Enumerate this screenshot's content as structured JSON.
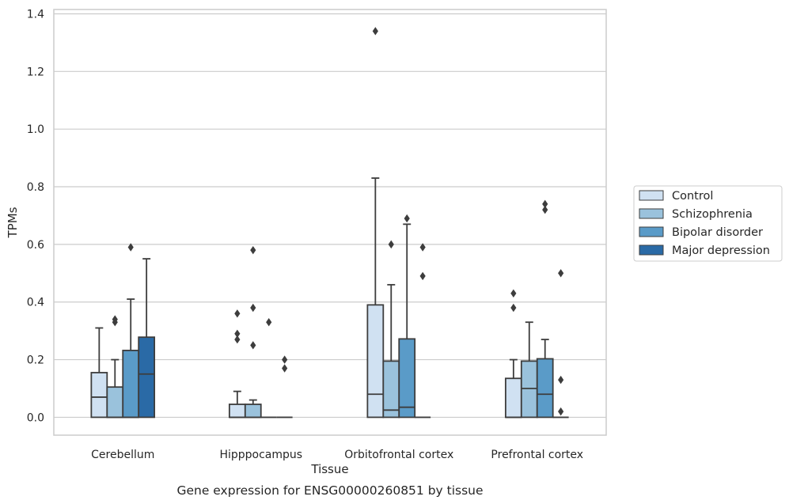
{
  "chart_data": {
    "type": "box",
    "title": "",
    "caption": "Gene expression for ENSG00000260851 by tissue",
    "xlabel": "Tissue",
    "ylabel": "TPMs",
    "ylim": [
      -0.062,
      1.415
    ],
    "yticks": [
      0.0,
      0.2,
      0.4,
      0.6,
      0.8,
      1.0,
      1.2,
      1.4
    ],
    "ytick_labels": [
      "0.0",
      "0.2",
      "0.4",
      "0.6",
      "0.8",
      "1.0",
      "1.2",
      "1.4"
    ],
    "grid": "horizontal",
    "legend_position": "right",
    "categories": [
      "Cerebellum",
      "Hipppocampus",
      "Orbitofrontal cortex",
      "Prefrontal cortex"
    ],
    "series": [
      {
        "name": "Control",
        "color": "#d0e1f2",
        "boxes": [
          {
            "q1": 0.0,
            "median": 0.07,
            "q3": 0.155,
            "whisker_low": 0.0,
            "whisker_high": 0.31,
            "outliers": []
          },
          {
            "q1": 0.0,
            "median": 0.0,
            "q3": 0.045,
            "whisker_low": 0.0,
            "whisker_high": 0.09,
            "outliers": [
              0.27,
              0.29,
              0.36
            ]
          },
          {
            "q1": 0.0,
            "median": 0.08,
            "q3": 0.39,
            "whisker_low": 0.0,
            "whisker_high": 0.83,
            "outliers": [
              1.34
            ]
          },
          {
            "q1": 0.0,
            "median": 0.0,
            "q3": 0.135,
            "whisker_low": 0.0,
            "whisker_high": 0.2,
            "outliers": [
              0.38,
              0.43
            ]
          }
        ]
      },
      {
        "name": "Schizophrenia",
        "color": "#9ac2dc",
        "boxes": [
          {
            "q1": 0.0,
            "median": 0.0,
            "q3": 0.105,
            "whisker_low": 0.0,
            "whisker_high": 0.2,
            "outliers": [
              0.33,
              0.34
            ]
          },
          {
            "q1": 0.0,
            "median": 0.0,
            "q3": 0.045,
            "whisker_low": 0.0,
            "whisker_high": 0.06,
            "outliers": [
              0.25,
              0.38,
              0.58
            ]
          },
          {
            "q1": 0.0,
            "median": 0.025,
            "q3": 0.195,
            "whisker_low": 0.0,
            "whisker_high": 0.46,
            "outliers": [
              0.6
            ]
          },
          {
            "q1": 0.0,
            "median": 0.1,
            "q3": 0.195,
            "whisker_low": 0.0,
            "whisker_high": 0.33,
            "outliers": []
          }
        ]
      },
      {
        "name": "Bipolar disorder",
        "color": "#5a9bc8",
        "boxes": [
          {
            "q1": 0.0,
            "median": 0.0,
            "q3": 0.232,
            "whisker_low": 0.0,
            "whisker_high": 0.41,
            "outliers": [
              0.59
            ]
          },
          {
            "q1": 0.0,
            "median": 0.0,
            "q3": 0.0,
            "whisker_low": 0.0,
            "whisker_high": 0.0,
            "outliers": [
              0.33
            ]
          },
          {
            "q1": 0.0,
            "median": 0.035,
            "q3": 0.272,
            "whisker_low": 0.0,
            "whisker_high": 0.67,
            "outliers": [
              0.69
            ]
          },
          {
            "q1": 0.0,
            "median": 0.08,
            "q3": 0.203,
            "whisker_low": 0.0,
            "whisker_high": 0.27,
            "outliers": [
              0.72,
              0.74
            ]
          }
        ]
      },
      {
        "name": "Major depression",
        "color": "#2a6aa6",
        "boxes": [
          {
            "q1": 0.0,
            "median": 0.15,
            "q3": 0.278,
            "whisker_low": 0.0,
            "whisker_high": 0.55,
            "outliers": []
          },
          {
            "q1": 0.0,
            "median": 0.0,
            "q3": 0.0,
            "whisker_low": 0.0,
            "whisker_high": 0.0,
            "outliers": [
              0.17,
              0.2
            ]
          },
          {
            "q1": 0.0,
            "median": 0.0,
            "q3": 0.0,
            "whisker_low": 0.0,
            "whisker_high": 0.0,
            "outliers": [
              0.49,
              0.59
            ]
          },
          {
            "q1": 0.0,
            "median": 0.0,
            "q3": 0.0,
            "whisker_low": 0.0,
            "whisker_high": 0.0,
            "outliers": [
              0.02,
              0.13,
              0.5
            ]
          }
        ]
      }
    ]
  }
}
